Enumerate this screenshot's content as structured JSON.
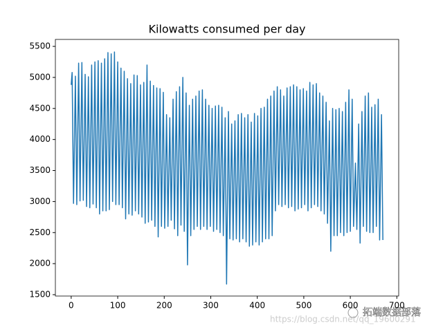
{
  "chart_data": {
    "type": "line",
    "title": "Kilowatts consumed per day",
    "x": [
      0,
      2,
      5,
      9,
      12,
      16,
      19,
      23,
      26,
      30,
      33,
      37,
      40,
      44,
      47,
      51,
      54,
      58,
      61,
      65,
      68,
      72,
      75,
      79,
      82,
      86,
      89,
      93,
      96,
      100,
      103,
      107,
      110,
      114,
      117,
      121,
      124,
      128,
      131,
      135,
      138,
      142,
      145,
      149,
      152,
      156,
      159,
      163,
      166,
      170,
      173,
      177,
      180,
      184,
      187,
      191,
      194,
      198,
      201,
      205,
      208,
      212,
      215,
      219,
      222,
      226,
      229,
      233,
      236,
      240,
      243,
      247,
      250,
      254,
      257,
      261,
      264,
      268,
      271,
      275,
      278,
      282,
      285,
      289,
      292,
      296,
      299,
      303,
      306,
      310,
      313,
      317,
      320,
      324,
      327,
      331,
      334,
      338,
      341,
      345,
      348,
      352,
      355,
      359,
      362,
      366,
      369,
      373,
      376,
      380,
      383,
      387,
      390,
      394,
      397,
      401,
      404,
      408,
      411,
      415,
      418,
      422,
      425,
      429,
      432,
      436,
      439,
      443,
      446,
      450,
      453,
      457,
      460,
      464,
      467,
      471,
      474,
      478,
      481,
      485,
      488,
      492,
      495,
      499,
      502,
      506,
      509,
      513,
      516,
      520,
      523,
      527,
      530,
      534,
      537,
      541,
      544,
      548,
      551,
      555,
      558,
      562,
      565,
      569,
      572,
      576,
      579,
      583,
      586,
      590,
      593,
      597,
      600,
      604,
      607,
      611,
      614,
      618,
      621,
      625,
      628,
      632,
      635,
      639,
      642,
      646,
      649,
      653,
      656,
      660,
      663,
      667,
      670
    ],
    "series": [
      {
        "name": "Kilowatts",
        "color": "#1f77b4",
        "values": [
          4880,
          5080,
          2970,
          5020,
          2950,
          5230,
          3010,
          5240,
          3020,
          5050,
          2920,
          5010,
          2900,
          5200,
          2960,
          5250,
          2900,
          5270,
          2800,
          5230,
          2850,
          5300,
          2850,
          5400,
          2870,
          5380,
          3000,
          5410,
          2950,
          5250,
          2950,
          5150,
          2900,
          5100,
          2720,
          4980,
          2800,
          4900,
          2780,
          5040,
          2850,
          5030,
          2800,
          4880,
          2750,
          4920,
          2650,
          5200,
          2670,
          4940,
          2700,
          4870,
          2600,
          4830,
          2430,
          4820,
          2600,
          4760,
          2570,
          4400,
          2600,
          4350,
          2700,
          4650,
          2560,
          4770,
          2450,
          4850,
          2620,
          5000,
          2520,
          4750,
          1980,
          4550,
          2450,
          4650,
          2550,
          4700,
          2600,
          4780,
          2550,
          4800,
          2600,
          4650,
          2550,
          4550,
          2600,
          4500,
          2520,
          4540,
          2550,
          4550,
          2500,
          4520,
          2450,
          4350,
          1670,
          4450,
          2400,
          4250,
          2380,
          4300,
          2400,
          4400,
          2350,
          4420,
          2400,
          4350,
          2350,
          4400,
          2280,
          4280,
          2300,
          4420,
          2350,
          4380,
          2300,
          4500,
          2350,
          4520,
          2400,
          4650,
          2400,
          4700,
          2450,
          4780,
          2850,
          4850,
          2950,
          4800,
          2920,
          4700,
          2950,
          4830,
          2900,
          4850,
          2920,
          4880,
          2850,
          4850,
          2880,
          4800,
          2900,
          4820,
          2950,
          4780,
          2850,
          4920,
          2900,
          4880,
          2950,
          4900,
          2920,
          4750,
          2850,
          4700,
          2800,
          4600,
          2650,
          4300,
          2200,
          4500,
          2450,
          4480,
          2450,
          4500,
          2500,
          4450,
          2450,
          4600,
          2500,
          4800,
          2520,
          4650,
          2600,
          3620,
          2550,
          4250,
          2330,
          4450,
          2600,
          4700,
          2520,
          4750,
          2500,
          4520,
          2500,
          4560,
          2600,
          4650,
          2380,
          4400,
          2380
        ]
      }
    ],
    "xlim": [
      -34,
      704
    ],
    "xticks": [
      0,
      100,
      200,
      300,
      400,
      500,
      600,
      700
    ],
    "ylim": [
      1478,
      5612
    ],
    "yticks": [
      1500,
      2000,
      2500,
      3000,
      3500,
      4000,
      4500,
      5000,
      5500
    ]
  },
  "watermark": {
    "brand": "拓端数据部落",
    "url": "https://blog.csdn.net/qq_19600291"
  }
}
